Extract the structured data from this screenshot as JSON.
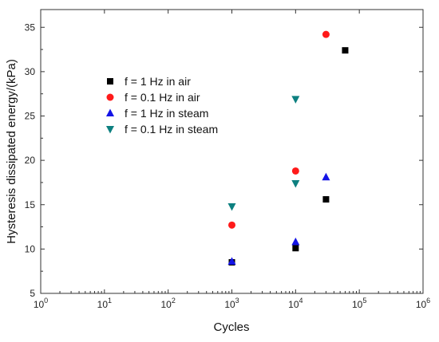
{
  "chart_data": {
    "type": "scatter",
    "title": "",
    "xlabel": "Cycles",
    "ylabel": "Hysteresis dissipated energy/(kPa)",
    "xscale": "log",
    "xlim": [
      1,
      1000000
    ],
    "ylim": [
      5,
      37
    ],
    "x_ticks": [
      {
        "value": 1,
        "base": "10",
        "exp": "0"
      },
      {
        "value": 10,
        "base": "10",
        "exp": "1"
      },
      {
        "value": 100,
        "base": "10",
        "exp": "2"
      },
      {
        "value": 1000,
        "base": "10",
        "exp": "3"
      },
      {
        "value": 10000,
        "base": "10",
        "exp": "4"
      },
      {
        "value": 100000,
        "base": "10",
        "exp": "5"
      },
      {
        "value": 1000000,
        "base": "10",
        "exp": "6"
      }
    ],
    "y_ticks": [
      5,
      10,
      15,
      20,
      25,
      30,
      35
    ],
    "grid": false,
    "legend_position": "top-right",
    "series": [
      {
        "name": "f = 1 Hz in air",
        "marker": "square",
        "color": "#000000",
        "x": [
          1000,
          10000,
          30000,
          60000
        ],
        "y": [
          8.5,
          10.1,
          15.6,
          32.4
        ]
      },
      {
        "name": "f = 0.1 Hz in air",
        "marker": "circle",
        "color": "#ff1a1a",
        "x": [
          1000,
          10000,
          30000
        ],
        "y": [
          12.7,
          18.8,
          34.2
        ]
      },
      {
        "name": "f = 1 Hz in steam",
        "marker": "triangle-up",
        "color": "#1414e6",
        "x": [
          1000,
          10000,
          30000
        ],
        "y": [
          8.6,
          10.8,
          18.1
        ]
      },
      {
        "name": "f = 0.1 Hz in steam",
        "marker": "triangle-down",
        "color": "#0d8080",
        "x": [
          1000,
          10000
        ],
        "y": [
          14.8,
          17.4
        ]
      }
    ],
    "extra_points": [
      {
        "series": 3,
        "x": 10000,
        "y": 26.9
      }
    ]
  }
}
